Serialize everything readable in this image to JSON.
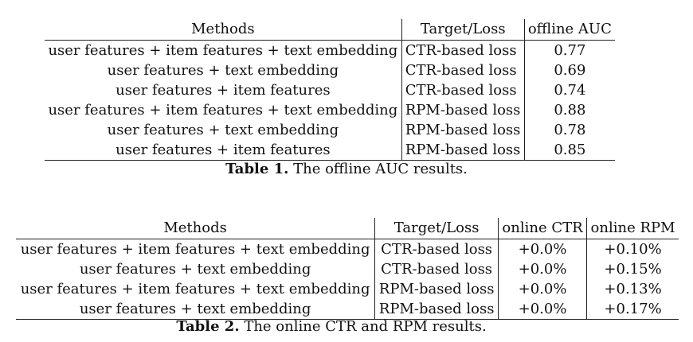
{
  "table1": {
    "headers": [
      "Methods",
      "Target/Loss",
      "offline AUC"
    ],
    "rows": [
      [
        "user features + item features + text embedding",
        "CTR-based loss",
        "0.77"
      ],
      [
        "user features + text embedding",
        "CTR-based loss",
        "0.69"
      ],
      [
        "user features + item features",
        "CTR-based loss",
        "0.74"
      ],
      [
        "user features + item features + text embedding",
        "RPM-based loss",
        "0.88"
      ],
      [
        "user features + text embedding",
        "RPM-based loss",
        "0.78"
      ],
      [
        "user features + item features",
        "RPM-based loss",
        "0.85"
      ]
    ],
    "caption_label": "Table 1.",
    "caption_text": " The offline AUC results."
  },
  "table2": {
    "headers": [
      "Methods",
      "Target/Loss",
      "online CTR",
      "online RPM"
    ],
    "rows": [
      [
        "user features + item features + text embedding",
        "CTR-based loss",
        "+0.0%",
        "+0.10%"
      ],
      [
        "user features + text embedding",
        "CTR-based loss",
        "+0.0%",
        "+0.15%"
      ],
      [
        "user features + item features + text embedding",
        "RPM-based loss",
        "+0.0%",
        "+0.13%"
      ],
      [
        "user features + text embedding",
        "RPM-based loss",
        "+0.0%",
        "+0.17%"
      ]
    ],
    "caption_label": "Table 2.",
    "caption_text": " The online CTR and RPM results."
  }
}
